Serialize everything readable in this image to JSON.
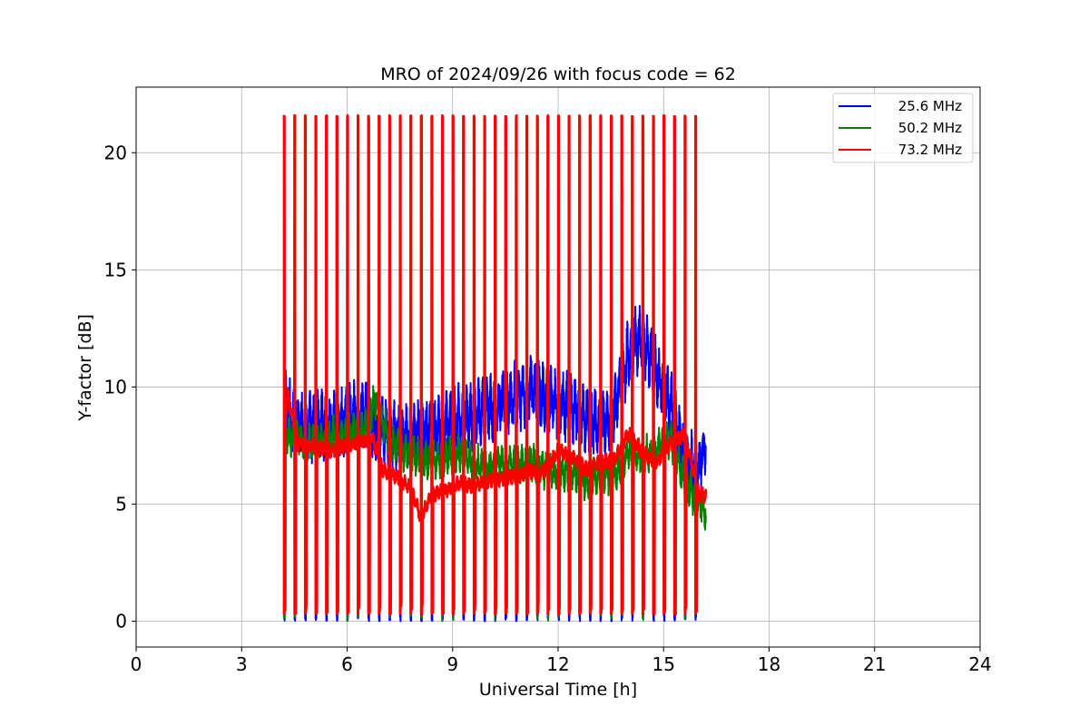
{
  "chart_data": {
    "type": "line",
    "title": "MRO of 2024/09/26 with focus code = 62",
    "xlabel": "Universal Time [h]",
    "ylabel": "Y-factor [dB]",
    "xlim": [
      0,
      24
    ],
    "ylim": [
      -1.1,
      22.8
    ],
    "xticks": [
      0,
      3,
      6,
      9,
      12,
      15,
      18,
      21,
      24
    ],
    "yticks": [
      0,
      5,
      10,
      15,
      20
    ],
    "xtick_labels": [
      "0",
      "3",
      "6",
      "9",
      "12",
      "15",
      "18",
      "21",
      "24"
    ],
    "ytick_labels": [
      "0",
      "5",
      "10",
      "15",
      "20"
    ],
    "grid": true,
    "legend_position": "top-right",
    "calibration_pulses": {
      "peak_value": 21.6,
      "times": [
        4.2,
        4.5,
        4.8,
        5.1,
        5.4,
        5.7,
        6.0,
        6.3,
        6.6,
        6.9,
        7.2,
        7.5,
        7.8,
        8.1,
        8.4,
        8.7,
        9.0,
        9.3,
        9.6,
        9.9,
        10.2,
        10.5,
        10.8,
        11.1,
        11.4,
        11.7,
        12.0,
        12.3,
        12.6,
        12.9,
        13.2,
        13.5,
        13.8,
        14.1,
        14.4,
        14.7,
        15.0,
        15.3,
        15.6,
        15.9
      ]
    },
    "series": [
      {
        "name": "25.6 MHz",
        "color": "#0000ff",
        "x": [
          4.2,
          4.5,
          5.0,
          5.5,
          6.0,
          6.5,
          6.8,
          7.2,
          7.6,
          8.0,
          8.4,
          8.8,
          9.2,
          9.6,
          10.0,
          10.4,
          10.8,
          11.2,
          11.6,
          12.0,
          12.4,
          12.8,
          13.2,
          13.6,
          14.0,
          14.4,
          14.8,
          15.2,
          15.6,
          16.0,
          16.2
        ],
        "values": [
          9.5,
          8.4,
          8.3,
          8.4,
          8.6,
          8.9,
          8.3,
          8.0,
          7.8,
          8.0,
          8.2,
          8.4,
          8.6,
          8.8,
          9.0,
          9.3,
          9.6,
          9.9,
          9.5,
          9.3,
          9.0,
          8.6,
          8.4,
          8.9,
          11.5,
          12.2,
          10.5,
          9.3,
          6.8,
          6.5,
          7.5
        ],
        "noise": 1.6
      },
      {
        "name": "50.2 MHz",
        "color": "#008000",
        "x": [
          4.2,
          4.5,
          5.0,
          5.5,
          6.0,
          6.5,
          6.8,
          7.2,
          7.6,
          8.0,
          8.4,
          8.8,
          9.2,
          9.6,
          10.0,
          10.4,
          10.8,
          11.2,
          11.6,
          12.0,
          12.4,
          12.8,
          13.2,
          13.6,
          14.0,
          14.4,
          14.8,
          15.2,
          15.6,
          16.0,
          16.2
        ],
        "values": [
          8.0,
          7.8,
          7.6,
          7.9,
          8.0,
          8.2,
          9.5,
          7.8,
          7.2,
          7.0,
          6.8,
          7.0,
          7.2,
          6.8,
          6.5,
          6.8,
          6.6,
          6.9,
          6.5,
          6.2,
          6.4,
          6.0,
          6.3,
          6.2,
          7.2,
          7.0,
          7.4,
          7.8,
          6.0,
          5.0,
          4.7
        ],
        "noise": 0.9
      },
      {
        "name": "73.2 MHz",
        "color": "#ff0000",
        "x": [
          4.2,
          4.3,
          4.6,
          5.0,
          5.5,
          6.0,
          6.5,
          6.7,
          7.0,
          7.4,
          7.8,
          8.1,
          8.4,
          8.8,
          9.2,
          9.6,
          10.0,
          10.4,
          10.8,
          11.2,
          11.6,
          12.0,
          12.4,
          12.8,
          13.2,
          13.6,
          14.0,
          14.4,
          14.8,
          15.2,
          15.6,
          16.0,
          16.2
        ],
        "values": [
          7.8,
          9.8,
          7.6,
          7.5,
          7.3,
          7.5,
          7.7,
          7.9,
          6.5,
          6.2,
          5.7,
          4.4,
          5.4,
          5.6,
          5.9,
          5.8,
          6.0,
          6.1,
          6.2,
          6.4,
          6.4,
          7.3,
          7.0,
          6.5,
          6.8,
          6.9,
          8.0,
          7.2,
          6.8,
          7.6,
          8.0,
          5.4,
          5.4
        ],
        "noise": 0.35
      }
    ]
  }
}
